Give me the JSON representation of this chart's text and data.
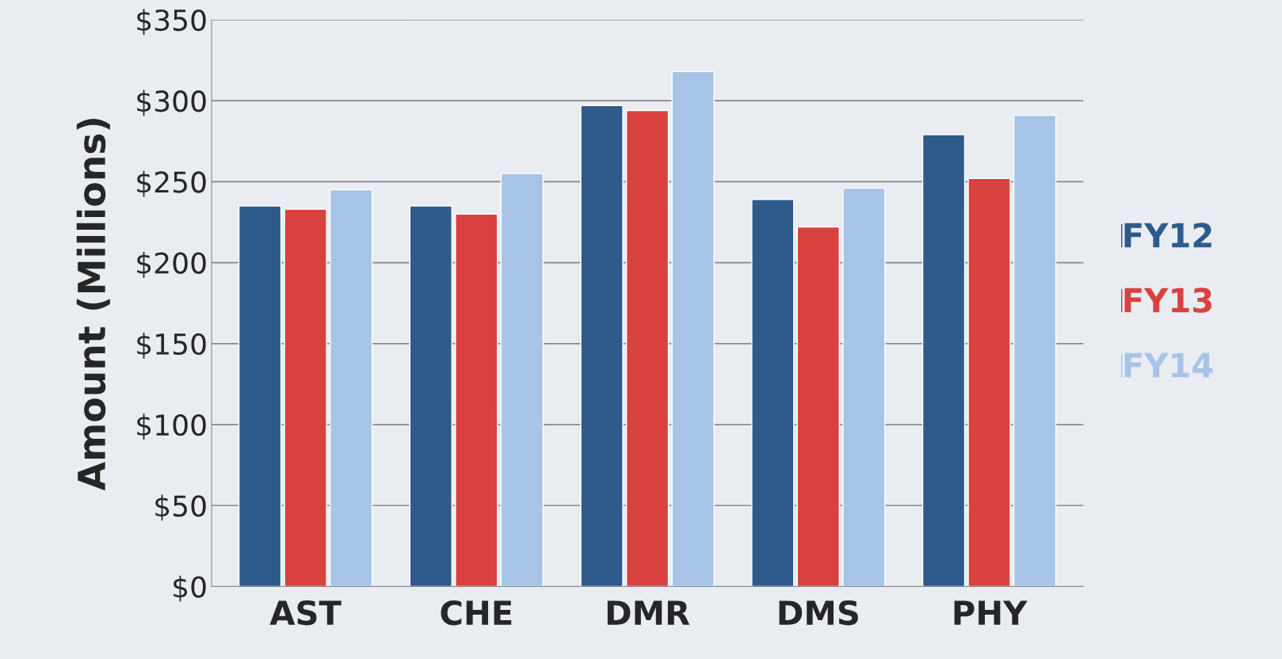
{
  "chart_data": {
    "type": "bar",
    "ylabel": "Amount (Millions)",
    "categories": [
      "AST",
      "CHE",
      "DMR",
      "DMS",
      "PHY"
    ],
    "series": [
      {
        "name": "FY12",
        "color": "#2e5a8c",
        "values": [
          235,
          235,
          297,
          239,
          279
        ]
      },
      {
        "name": "FY13",
        "color": "#d9413f",
        "values": [
          233,
          230,
          294,
          222,
          252
        ]
      },
      {
        "name": "FY14",
        "color": "#a7c4e6",
        "values": [
          245,
          255,
          318,
          246,
          291
        ]
      }
    ],
    "ylim": [
      0,
      350
    ],
    "yticks": [
      {
        "value": 0,
        "label": "$0"
      },
      {
        "value": 50,
        "label": "$50"
      },
      {
        "value": 100,
        "label": "$100"
      },
      {
        "value": 150,
        "label": "$150"
      },
      {
        "value": 200,
        "label": "$200"
      },
      {
        "value": 250,
        "label": "$250"
      },
      {
        "value": 300,
        "label": "$300"
      },
      {
        "value": 350,
        "label": "$350"
      }
    ],
    "grid": "y",
    "legend": "right"
  }
}
